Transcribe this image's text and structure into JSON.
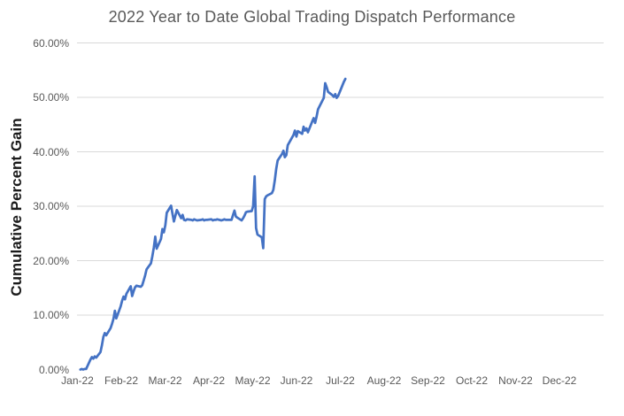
{
  "chart_data": {
    "type": "line",
    "title": "2022 Year to Date Global Trading Dispatch Performance",
    "xlabel": "",
    "ylabel": "Cumulative Percent Gain",
    "legend_position": "none",
    "grid": "horizontal-only, no gridline at 0%",
    "ylim": [
      0,
      60
    ],
    "y_tick_labels": [
      "0.00%",
      "10.00%",
      "20.00%",
      "30.00%",
      "40.00%",
      "50.00%",
      "60.00%"
    ],
    "y_tick_values": [
      0,
      10,
      20,
      30,
      40,
      50,
      60
    ],
    "x_tick_labels": [
      "Jan-22",
      "Feb-22",
      "Mar-22",
      "Apr-22",
      "May-22",
      "Jun-22",
      "Jul-22",
      "Aug-22",
      "Sep-22",
      "Oct-22",
      "Nov-22",
      "Dec-22"
    ],
    "x_range": [
      "2022-01-01",
      "2023-01-01"
    ],
    "series": [
      {
        "name": "Cumulative Percent Gain",
        "color": "#4472C4",
        "points": [
          [
            "2022-01-03",
            0.0
          ],
          [
            "2022-01-04",
            0.1
          ],
          [
            "2022-01-05",
            0.0
          ],
          [
            "2022-01-06",
            0.1
          ],
          [
            "2022-01-07",
            0.1
          ],
          [
            "2022-01-10",
            1.8
          ],
          [
            "2022-01-11",
            2.3
          ],
          [
            "2022-01-12",
            2.0
          ],
          [
            "2022-01-13",
            2.4
          ],
          [
            "2022-01-14",
            2.2
          ],
          [
            "2022-01-17",
            3.2
          ],
          [
            "2022-01-18",
            4.5
          ],
          [
            "2022-01-19",
            6.0
          ],
          [
            "2022-01-20",
            6.7
          ],
          [
            "2022-01-21",
            6.3
          ],
          [
            "2022-01-24",
            7.6
          ],
          [
            "2022-01-25",
            8.4
          ],
          [
            "2022-01-26",
            9.3
          ],
          [
            "2022-01-27",
            10.8
          ],
          [
            "2022-01-28",
            9.4
          ],
          [
            "2022-01-31",
            11.6
          ],
          [
            "2022-02-01",
            12.6
          ],
          [
            "2022-02-02",
            13.4
          ],
          [
            "2022-02-03",
            12.9
          ],
          [
            "2022-02-04",
            13.9
          ],
          [
            "2022-02-07",
            15.3
          ],
          [
            "2022-02-08",
            13.5
          ],
          [
            "2022-02-09",
            14.4
          ],
          [
            "2022-02-10",
            15.1
          ],
          [
            "2022-02-11",
            15.4
          ],
          [
            "2022-02-14",
            15.2
          ],
          [
            "2022-02-15",
            15.5
          ],
          [
            "2022-02-16",
            16.4
          ],
          [
            "2022-02-17",
            17.3
          ],
          [
            "2022-02-18",
            18.4
          ],
          [
            "2022-02-21",
            19.5
          ],
          [
            "2022-02-22",
            20.8
          ],
          [
            "2022-02-23",
            22.4
          ],
          [
            "2022-02-24",
            24.4
          ],
          [
            "2022-02-25",
            22.2
          ],
          [
            "2022-02-28",
            24.0
          ],
          [
            "2022-03-01",
            25.8
          ],
          [
            "2022-03-02",
            25.2
          ],
          [
            "2022-03-03",
            26.5
          ],
          [
            "2022-03-04",
            28.8
          ],
          [
            "2022-03-07",
            30.1
          ],
          [
            "2022-03-08",
            28.6
          ],
          [
            "2022-03-09",
            27.2
          ],
          [
            "2022-03-10",
            28.3
          ],
          [
            "2022-03-11",
            29.3
          ],
          [
            "2022-03-14",
            27.8
          ],
          [
            "2022-03-15",
            28.4
          ],
          [
            "2022-03-16",
            27.5
          ],
          [
            "2022-03-17",
            27.4
          ],
          [
            "2022-03-18",
            27.6
          ],
          [
            "2022-03-21",
            27.5
          ],
          [
            "2022-03-22",
            27.4
          ],
          [
            "2022-03-23",
            27.6
          ],
          [
            "2022-03-24",
            27.5
          ],
          [
            "2022-03-25",
            27.4
          ],
          [
            "2022-03-28",
            27.5
          ],
          [
            "2022-03-29",
            27.6
          ],
          [
            "2022-03-30",
            27.4
          ],
          [
            "2022-03-31",
            27.5
          ],
          [
            "2022-04-01",
            27.5
          ],
          [
            "2022-04-04",
            27.6
          ],
          [
            "2022-04-05",
            27.4
          ],
          [
            "2022-04-06",
            27.5
          ],
          [
            "2022-04-07",
            27.5
          ],
          [
            "2022-04-08",
            27.6
          ],
          [
            "2022-04-11",
            27.4
          ],
          [
            "2022-04-12",
            27.5
          ],
          [
            "2022-04-13",
            27.6
          ],
          [
            "2022-04-14",
            27.5
          ],
          [
            "2022-04-18",
            27.5
          ],
          [
            "2022-04-19",
            28.4
          ],
          [
            "2022-04-20",
            29.2
          ],
          [
            "2022-04-21",
            28.1
          ],
          [
            "2022-04-22",
            27.9
          ],
          [
            "2022-04-25",
            27.4
          ],
          [
            "2022-04-26",
            27.8
          ],
          [
            "2022-04-27",
            28.3
          ],
          [
            "2022-04-28",
            28.9
          ],
          [
            "2022-04-29",
            29.0
          ],
          [
            "2022-05-02",
            29.1
          ],
          [
            "2022-05-03",
            30.0
          ],
          [
            "2022-05-04",
            35.5
          ],
          [
            "2022-05-05",
            26.0
          ],
          [
            "2022-05-06",
            24.8
          ],
          [
            "2022-05-09",
            24.3
          ],
          [
            "2022-05-10",
            22.3
          ],
          [
            "2022-05-11",
            31.3
          ],
          [
            "2022-05-12",
            31.8
          ],
          [
            "2022-05-13",
            32.0
          ],
          [
            "2022-05-16",
            32.4
          ],
          [
            "2022-05-17",
            33.0
          ],
          [
            "2022-05-18",
            34.8
          ],
          [
            "2022-05-19",
            36.9
          ],
          [
            "2022-05-20",
            38.4
          ],
          [
            "2022-05-23",
            39.6
          ],
          [
            "2022-05-24",
            40.2
          ],
          [
            "2022-05-25",
            39.0
          ],
          [
            "2022-05-26",
            39.4
          ],
          [
            "2022-05-27",
            41.2
          ],
          [
            "2022-05-31",
            43.1
          ],
          [
            "2022-06-01",
            43.9
          ],
          [
            "2022-06-02",
            42.8
          ],
          [
            "2022-06-03",
            43.8
          ],
          [
            "2022-06-06",
            43.3
          ],
          [
            "2022-06-07",
            44.6
          ],
          [
            "2022-06-08",
            43.9
          ],
          [
            "2022-06-09",
            44.3
          ],
          [
            "2022-06-10",
            43.6
          ],
          [
            "2022-06-13",
            45.6
          ],
          [
            "2022-06-14",
            46.2
          ],
          [
            "2022-06-15",
            45.3
          ],
          [
            "2022-06-16",
            46.4
          ],
          [
            "2022-06-17",
            47.8
          ],
          [
            "2022-06-21",
            49.9
          ],
          [
            "2022-06-22",
            52.6
          ],
          [
            "2022-06-23",
            51.9
          ],
          [
            "2022-06-24",
            51.0
          ],
          [
            "2022-06-27",
            50.4
          ],
          [
            "2022-06-28",
            50.1
          ],
          [
            "2022-06-29",
            50.6
          ],
          [
            "2022-06-30",
            49.9
          ],
          [
            "2022-07-01",
            50.3
          ],
          [
            "2022-07-05",
            52.9
          ],
          [
            "2022-07-06",
            53.4
          ]
        ]
      }
    ],
    "colors": {
      "line": "#4472C4",
      "gridline": "#D9D9D9",
      "tick_text": "#595959",
      "title_text": "#595959",
      "y_axis_title_text": "#1a1a1a",
      "background": "#ffffff"
    }
  }
}
